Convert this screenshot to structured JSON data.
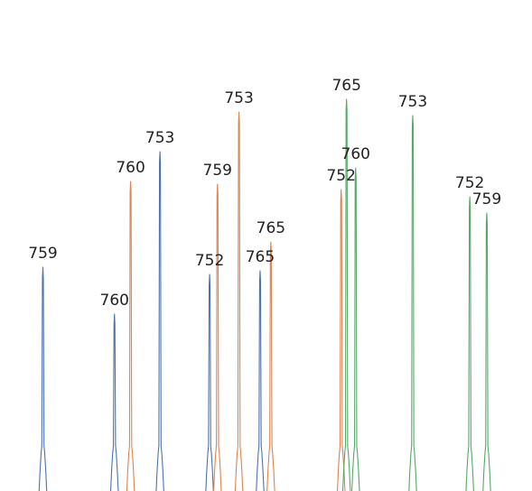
{
  "chart_data": {
    "type": "line",
    "title": "",
    "xlabel": "",
    "ylabel": "",
    "grid": false,
    "axes_visible": false,
    "ylim": [
      0,
      440
    ],
    "series": [
      {
        "color": "#4c72b0",
        "peaks": [
          {
            "x": 1,
            "height": 248,
            "label": "759"
          },
          {
            "x": 2.73,
            "height": 196,
            "label": "760"
          },
          {
            "x": 3.83,
            "height": 376,
            "label": "753"
          },
          {
            "x": 5.03,
            "height": 240,
            "label": "752"
          },
          {
            "x": 6.25,
            "height": 244,
            "label": "765"
          }
        ]
      },
      {
        "color": "#dd8452",
        "peaks": [
          {
            "x": 3.12,
            "height": 343,
            "label": "760"
          },
          {
            "x": 5.22,
            "height": 340,
            "label": "759"
          },
          {
            "x": 5.74,
            "height": 420,
            "label": "753"
          },
          {
            "x": 6.51,
            "height": 276,
            "label": "765"
          },
          {
            "x": 8.21,
            "height": 334,
            "label": "752"
          }
        ]
      },
      {
        "color": "#55a868",
        "peaks": [
          {
            "x": 8.34,
            "height": 434,
            "label": "765"
          },
          {
            "x": 8.56,
            "height": 358,
            "label": "760"
          },
          {
            "x": 9.94,
            "height": 416,
            "label": "753"
          },
          {
            "x": 11.32,
            "height": 326,
            "label": "752"
          },
          {
            "x": 11.73,
            "height": 308,
            "label": "759"
          }
        ]
      }
    ]
  }
}
